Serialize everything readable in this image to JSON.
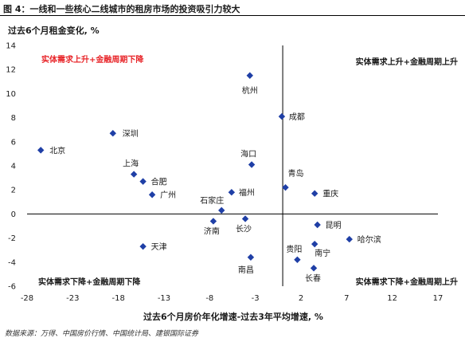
{
  "header": {
    "title": "图 4：一线和一些核心二线城市的租房市场的投资吸引力较大",
    "source": "数据来源：万得、中国房价行情、中国统计局、建银国际证券"
  },
  "chart_data": {
    "type": "scatter",
    "ylabel": "过去6个月租金变化, %",
    "xlabel": "过去6个月房价年化增速-过去3年平均增速, %",
    "xlim": [
      -28,
      17
    ],
    "ylim": [
      -6,
      14
    ],
    "x_ticks": [
      -28,
      -23,
      -18,
      -13,
      -8,
      -3,
      2,
      7,
      12,
      17
    ],
    "y_ticks": [
      -6,
      -4,
      -2,
      0,
      2,
      4,
      6,
      8,
      10,
      12,
      14
    ],
    "quadrants": {
      "top_left": "实体需求上升+金融周期下降",
      "top_right": "实体需求上升+金融周期上升",
      "bottom_left": "实体需求下降+金融周期下降",
      "bottom_right": "实体需求下降+金融周期上升"
    },
    "marker_color": "#1f3fa6",
    "highlight_color": "#e8262a",
    "points": [
      {
        "city": "北京",
        "x": -26.5,
        "y": 5.3
      },
      {
        "city": "深圳",
        "x": -18.6,
        "y": 6.7
      },
      {
        "city": "上海",
        "x": -16.3,
        "y": 3.3
      },
      {
        "city": "合肥",
        "x": -15.3,
        "y": 2.7
      },
      {
        "city": "广州",
        "x": -14.3,
        "y": 1.6
      },
      {
        "city": "天津",
        "x": -15.3,
        "y": -2.7
      },
      {
        "city": "杭州",
        "x": -3.6,
        "y": 11.5
      },
      {
        "city": "成都",
        "x": -0.1,
        "y": 8.1
      },
      {
        "city": "海口",
        "x": -3.4,
        "y": 4.1
      },
      {
        "city": "青岛",
        "x": 0.3,
        "y": 2.2
      },
      {
        "city": "重庆",
        "x": 3.5,
        "y": 1.7
      },
      {
        "city": "福州",
        "x": -5.6,
        "y": 1.8
      },
      {
        "city": "石家庄",
        "x": -6.7,
        "y": 0.3
      },
      {
        "city": "济南",
        "x": -7.6,
        "y": -0.6
      },
      {
        "city": "长沙",
        "x": -4.1,
        "y": -0.4
      },
      {
        "city": "昆明",
        "x": 3.8,
        "y": -0.9
      },
      {
        "city": "哈尔滨",
        "x": 7.3,
        "y": -2.1
      },
      {
        "city": "南宁",
        "x": 3.5,
        "y": -2.5
      },
      {
        "city": "贵阳",
        "x": 1.6,
        "y": -3.8
      },
      {
        "city": "南昌",
        "x": -3.5,
        "y": -3.6
      },
      {
        "city": "长春",
        "x": 3.4,
        "y": -4.5
      }
    ]
  }
}
